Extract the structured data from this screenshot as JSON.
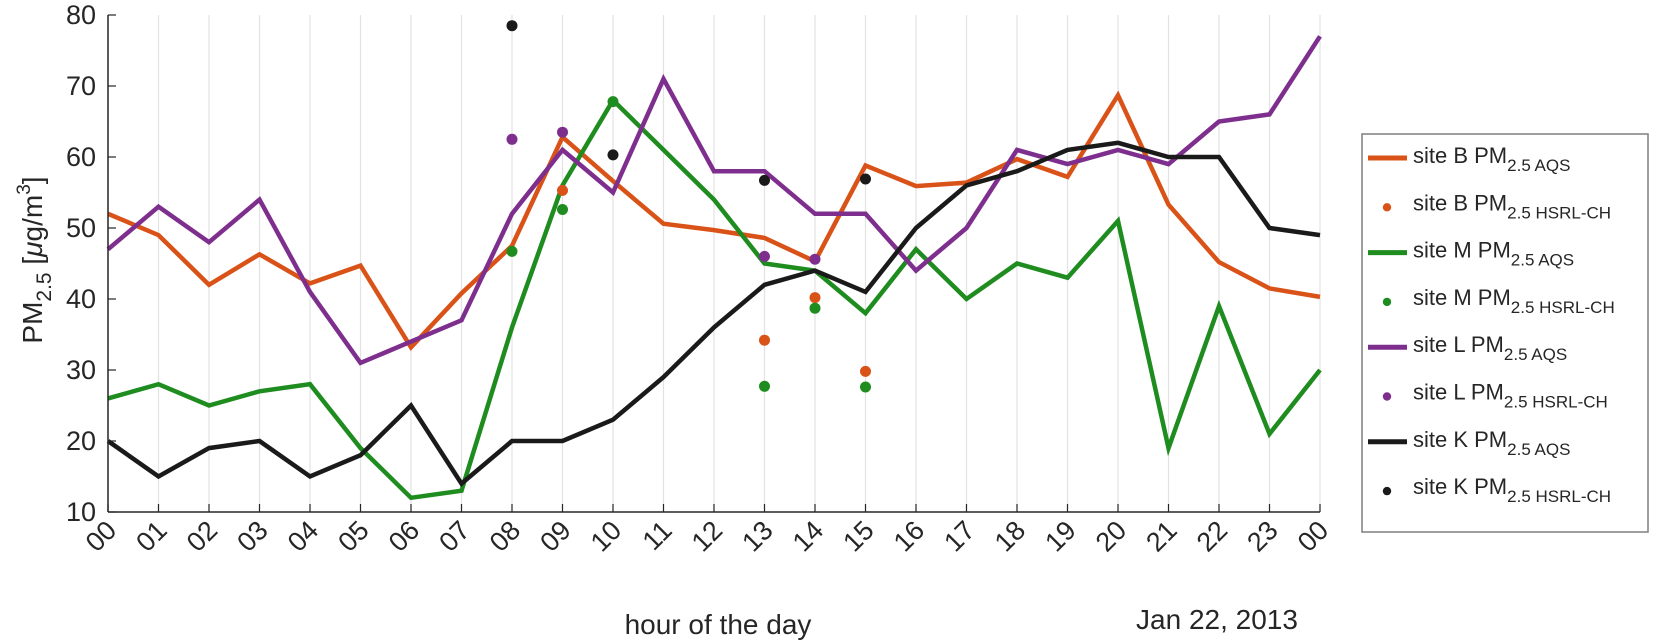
{
  "chart_data": {
    "type": "line",
    "xlabel": "hour of the day",
    "ylabel": {
      "base": "PM",
      "sub": "2.5",
      "unit_open": " [",
      "unit_mu": "μ",
      "unit_mid": "g/m",
      "unit_sup": "3",
      "unit_close": "]"
    },
    "date_label": "Jan 22, 2013",
    "x_ticks": [
      "00",
      "01",
      "02",
      "03",
      "04",
      "05",
      "06",
      "07",
      "08",
      "09",
      "10",
      "11",
      "12",
      "13",
      "14",
      "15",
      "16",
      "17",
      "18",
      "19",
      "20",
      "21",
      "22",
      "23",
      "00"
    ],
    "xlim": [
      0,
      24
    ],
    "ylim": [
      10,
      80
    ],
    "y_ticks": [
      10,
      20,
      30,
      40,
      50,
      60,
      70,
      80
    ],
    "grid": "vertical",
    "legend_position": "right",
    "colors": {
      "orange": "#d95319",
      "green": "#1e8c1e",
      "purple": "#7e2f8e",
      "black": "#1a1a1a"
    },
    "series": [
      {
        "name": "site B PM",
        "sub": "2.5 AQS",
        "style": "line",
        "color": "#d95319",
        "x": [
          0,
          1,
          2,
          3,
          4,
          5,
          6,
          7,
          8,
          9,
          10,
          11,
          12,
          13,
          14,
          15,
          16,
          17,
          18,
          19,
          20,
          21,
          22,
          23,
          24
        ],
        "values": [
          52,
          49,
          42,
          46.3,
          42.2,
          44.7,
          33.2,
          40.8,
          47.5,
          62.8,
          56.6,
          50.6,
          49.7,
          48.6,
          45.3,
          58.8,
          55.9,
          56.4,
          59.7,
          57.2,
          68.7,
          53.3,
          45.2,
          41.5,
          40.3
        ]
      },
      {
        "name": "site B PM",
        "sub": "2.5 HSRL-CH",
        "style": "dots",
        "color": "#d95319",
        "x": [
          9,
          13,
          14,
          15
        ],
        "values": [
          55.3,
          34.2,
          40.2,
          29.8
        ]
      },
      {
        "name": "site M PM",
        "sub": "2.5 AQS",
        "style": "line",
        "color": "#1e8c1e",
        "x": [
          0,
          1,
          2,
          3,
          4,
          5,
          6,
          7,
          8,
          9,
          10,
          11,
          12,
          13,
          14,
          15,
          16,
          17,
          18,
          19,
          20,
          21,
          22,
          23,
          24
        ],
        "values": [
          26,
          28,
          25,
          27,
          28,
          19,
          12,
          13,
          36,
          56,
          68,
          61,
          54,
          45,
          44,
          38,
          47,
          40,
          45,
          43,
          51,
          19,
          39,
          21,
          30
        ]
      },
      {
        "name": "site M PM",
        "sub": "2.5 HSRL-CH",
        "style": "dots",
        "color": "#1e8c1e",
        "x": [
          8,
          9,
          10,
          13,
          14,
          15
        ],
        "values": [
          46.7,
          52.6,
          67.8,
          27.7,
          38.7,
          27.6
        ]
      },
      {
        "name": "site L PM",
        "sub": "2.5 AQS",
        "style": "line",
        "color": "#7e2f8e",
        "x": [
          0,
          1,
          2,
          3,
          4,
          5,
          6,
          7,
          8,
          9,
          10,
          11,
          12,
          13,
          14,
          15,
          16,
          17,
          18,
          19,
          20,
          21,
          22,
          23,
          24
        ],
        "values": [
          47,
          53,
          48,
          54,
          41,
          31,
          34,
          37,
          52,
          61,
          55,
          71,
          58,
          58,
          52,
          52,
          44,
          50,
          61,
          59,
          61,
          59,
          65,
          66,
          77
        ]
      },
      {
        "name": "site L PM",
        "sub": "2.5 HSRL-CH",
        "style": "dots",
        "color": "#7e2f8e",
        "x": [
          8,
          9,
          13,
          14
        ],
        "values": [
          62.5,
          63.5,
          46,
          45.6
        ]
      },
      {
        "name": "site K PM",
        "sub": "2.5 AQS",
        "style": "line",
        "color": "#1a1a1a",
        "x": [
          0,
          1,
          2,
          3,
          4,
          5,
          6,
          7,
          8,
          9,
          10,
          11,
          12,
          13,
          14,
          15,
          16,
          17,
          18,
          19,
          20,
          21,
          22,
          23,
          24
        ],
        "values": [
          20,
          15,
          19,
          20,
          15,
          18,
          25,
          14,
          20,
          20,
          23,
          29,
          36,
          42,
          44,
          41,
          50,
          56,
          58,
          61,
          62,
          60,
          60,
          50,
          49
        ]
      },
      {
        "name": "site K PM",
        "sub": "2.5 HSRL-CH",
        "style": "dots",
        "color": "#1a1a1a",
        "x": [
          8,
          10,
          13,
          15
        ],
        "values": [
          78.5,
          60.3,
          56.7,
          56.9
        ]
      }
    ]
  }
}
